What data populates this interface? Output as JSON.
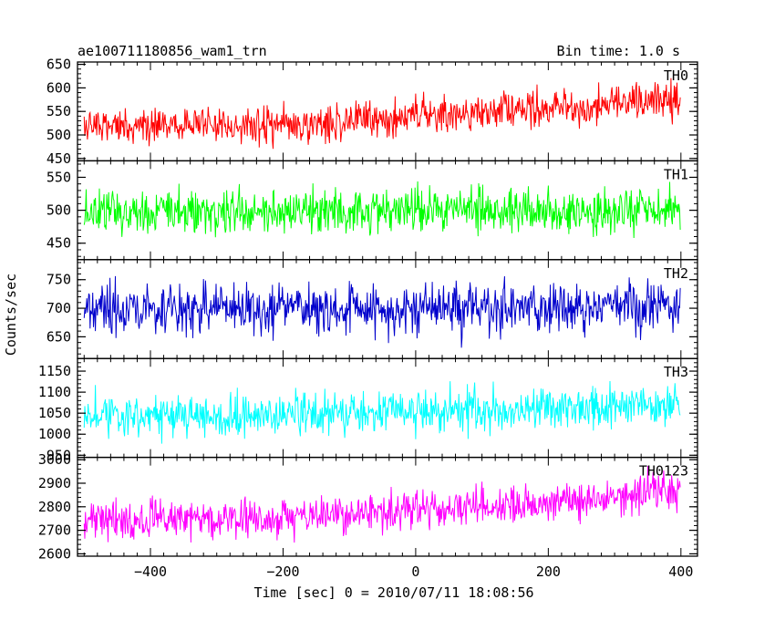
{
  "header": {
    "title": "ae100711180856_wam1_trn",
    "bin_time": "Bin time: 1.0 s"
  },
  "chart_data": {
    "type": "line",
    "title": "ae100711180856_wam1_trn",
    "subtitle": "Bin time: 1.0 s",
    "xlabel": "Time [sec] 0 = 2010/07/11 18:08:56",
    "ylabel": "Counts/sec",
    "xlim": [
      -510,
      425
    ],
    "x_ticks": [
      -400,
      -200,
      0,
      200,
      400
    ],
    "x_range": [
      -500,
      399
    ],
    "bin_time_s": 1.0,
    "panels": [
      {
        "name": "TH0",
        "color": "#ff0000",
        "ylim": [
          445,
          655
        ],
        "y_ticks": [
          450,
          500,
          550,
          600,
          650
        ],
        "trend": [
          [
            -500,
            518
          ],
          [
            -200,
            522
          ],
          [
            0,
            540
          ],
          [
            200,
            555
          ],
          [
            400,
            575
          ]
        ],
        "noise": 28
      },
      {
        "name": "TH1",
        "color": "#00ff00",
        "ylim": [
          425,
          575
        ],
        "y_ticks": [
          450,
          500,
          550
        ],
        "trend": [
          [
            -500,
            500
          ],
          [
            -200,
            498
          ],
          [
            0,
            502
          ],
          [
            200,
            500
          ],
          [
            400,
            502
          ]
        ],
        "noise": 25
      },
      {
        "name": "TH2",
        "color": "#0000cc",
        "ylim": [
          612,
          785
        ],
        "y_ticks": [
          650,
          700,
          750
        ],
        "trend": [
          [
            -500,
            700
          ],
          [
            -200,
            698
          ],
          [
            0,
            700
          ],
          [
            200,
            700
          ],
          [
            400,
            703
          ]
        ],
        "noise": 32
      },
      {
        "name": "TH3",
        "color": "#00ffff",
        "ylim": [
          945,
          1180
        ],
        "y_ticks": [
          950,
          1000,
          1050,
          1100,
          1150
        ],
        "trend": [
          [
            -500,
            1045
          ],
          [
            -200,
            1045
          ],
          [
            0,
            1052
          ],
          [
            200,
            1060
          ],
          [
            400,
            1075
          ]
        ],
        "noise": 36
      },
      {
        "name": "TH0123",
        "color": "#ff00ff",
        "ylim": [
          2590,
          3010
        ],
        "y_ticks": [
          2600,
          2700,
          2800,
          2900,
          3000
        ],
        "trend": [
          [
            -500,
            2745
          ],
          [
            -200,
            2755
          ],
          [
            0,
            2785
          ],
          [
            200,
            2810
          ],
          [
            400,
            2880
          ]
        ],
        "noise": 58
      }
    ]
  }
}
